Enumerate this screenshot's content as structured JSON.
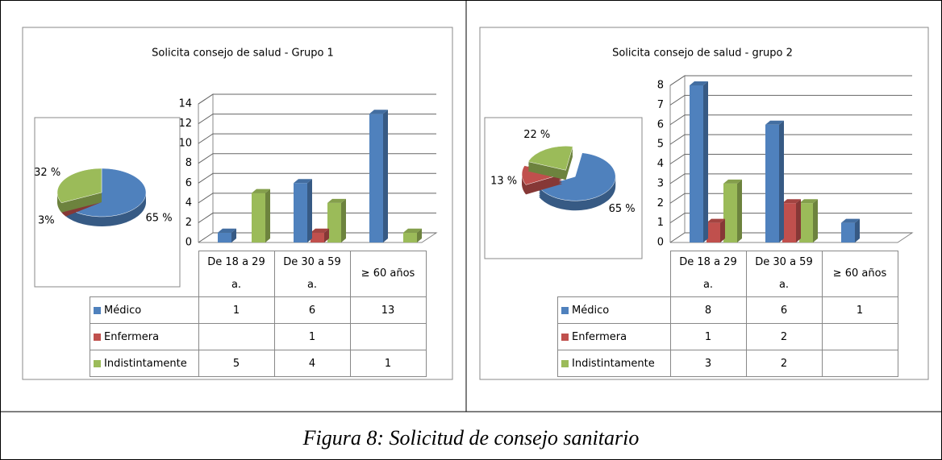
{
  "chart_data": [
    {
      "type": "bar",
      "title": "Solicita consejo de salud - Grupo 1",
      "categories": [
        "De 18 a 29 a.",
        "De 30 a 59 a.",
        "≥ 60 años"
      ],
      "series": [
        {
          "name": "Médico",
          "color": "#4f81bd",
          "values": [
            1,
            6,
            13
          ]
        },
        {
          "name": "Enfermera",
          "color": "#c0504d",
          "values": [
            null,
            1,
            null
          ]
        },
        {
          "name": "Indistintamente",
          "color": "#9bbb59",
          "values": [
            5,
            4,
            1
          ]
        }
      ],
      "ylim": [
        0,
        14
      ],
      "yticks": [
        0,
        2,
        4,
        6,
        8,
        10,
        12,
        14
      ],
      "grid": true,
      "inset": {
        "type": "pie",
        "values": [
          65,
          3,
          32
        ],
        "value_labels": [
          "65 %",
          "3%",
          "32 %"
        ],
        "colors": [
          "#4f81bd",
          "#c0504d",
          "#9bbb59"
        ]
      }
    },
    {
      "type": "bar",
      "title": "Solicita consejo de salud - grupo 2",
      "categories": [
        "De 18 a 29 a.",
        "De 30 a 59 a.",
        "≥ 60 años"
      ],
      "series": [
        {
          "name": "Médico",
          "color": "#4f81bd",
          "values": [
            8,
            6,
            1
          ]
        },
        {
          "name": "Enfermera",
          "color": "#c0504d",
          "values": [
            1,
            2,
            null
          ]
        },
        {
          "name": "Indistintamente",
          "color": "#9bbb59",
          "values": [
            3,
            2,
            null
          ]
        }
      ],
      "ylim": [
        0,
        8
      ],
      "yticks": [
        0,
        1,
        2,
        3,
        4,
        5,
        6,
        7,
        8
      ],
      "grid": true,
      "inset": {
        "type": "pie",
        "values": [
          65,
          13,
          22
        ],
        "value_labels": [
          "65 %",
          "13 %",
          "22 %"
        ],
        "colors": [
          "#4f81bd",
          "#c0504d",
          "#9bbb59"
        ]
      }
    }
  ],
  "caption": "Figura 8: Solicitud de consejo sanitario"
}
